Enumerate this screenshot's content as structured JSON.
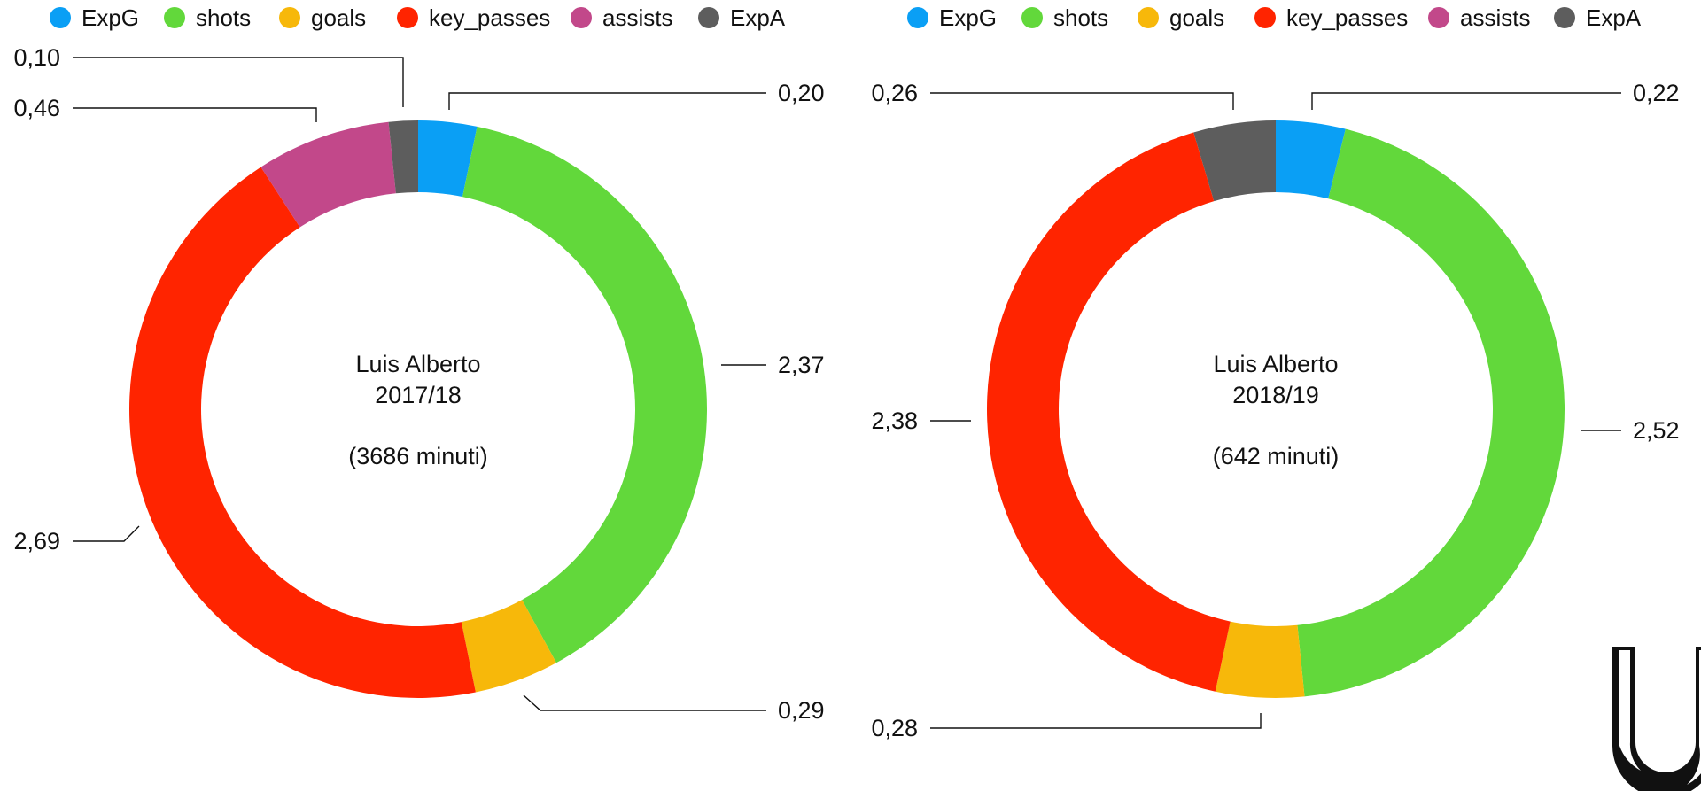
{
  "legend_order": [
    "ExpG",
    "shots",
    "goals",
    "key_passes",
    "assists",
    "ExpA"
  ],
  "series_colors": {
    "ExpG": "#0a9ff5",
    "shots": "#62d83b",
    "goals": "#f7b80a",
    "key_passes": "#ff2400",
    "assists": "#c2488a",
    "ExpA": "#5d5d5d"
  },
  "logo": {
    "name": "U-logo",
    "color": "#111111"
  },
  "chart_data": [
    {
      "type": "pie",
      "variant": "donut",
      "center_text": {
        "line1": "Luis Alberto",
        "line2": "2017/18",
        "line3": "(3686 minuti)"
      },
      "labels": [
        "ExpG",
        "shots",
        "goals",
        "key_passes",
        "assists",
        "ExpA"
      ],
      "values": [
        0.2,
        2.37,
        0.29,
        2.69,
        0.46,
        0.1
      ],
      "value_labels": [
        "0,20",
        "2,37",
        "0,29",
        "2,69",
        "0,46",
        "0,10"
      ]
    },
    {
      "type": "pie",
      "variant": "donut",
      "center_text": {
        "line1": "Luis Alberto",
        "line2": "2018/19",
        "line3": "(642 minuti)"
      },
      "labels": [
        "ExpG",
        "shots",
        "goals",
        "key_passes",
        "assists",
        "ExpA"
      ],
      "values": [
        0.22,
        2.52,
        0.28,
        2.38,
        0,
        0.26
      ],
      "value_labels": [
        "0,22",
        "2,52",
        "0,28",
        "2,38",
        "",
        "0,26"
      ]
    }
  ]
}
